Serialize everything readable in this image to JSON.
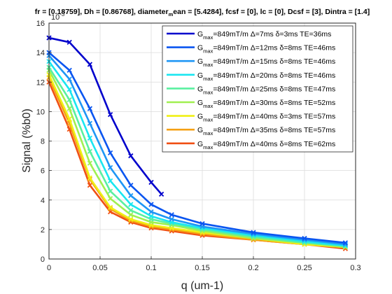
{
  "chart_data": {
    "type": "scatter",
    "title": "fr = [0.18759], Dh = [0.86768], diameter_mean = [5.4284], fcsf = [0], lc = [0], Dcsf = [3], Dintra = [1.4]",
    "title_parts": {
      "before_sub": "fr = [0.18759], Dh = [0.86768], diameter",
      "subscript": "m",
      "after_sub": "ean = [5.4284], fcsf = [0], lc = [0], Dcsf = [3], Dintra = [1.4]"
    },
    "xlabel": "q (um-1)",
    "ylabel": "Signal (%b0)",
    "exponent_label": "10",
    "exponent_power": "-3",
    "xlim": [
      0,
      0.3
    ],
    "ylim": [
      0,
      0.016
    ],
    "xticks": [
      0,
      0.05,
      0.1,
      0.15,
      0.2,
      0.25,
      0.3
    ],
    "xtick_labels": [
      "0",
      "0.05",
      "0.1",
      "0.15",
      "0.2",
      "0.25",
      "0.3"
    ],
    "yticks": [
      0,
      0.002,
      0.004,
      0.006,
      0.008,
      0.01,
      0.012,
      0.014,
      0.016
    ],
    "ytick_labels": [
      "0",
      "2",
      "4",
      "6",
      "8",
      "10",
      "12",
      "14",
      "16"
    ],
    "grid": true,
    "legend_position": "top-right",
    "marker": "x",
    "series": [
      {
        "label_g": "G",
        "label_sub": "max",
        "label_rest": "=849mT/m Δ=7ms δ=3ms TE=36ms",
        "color": "#0000cc",
        "x": [
          0,
          0.02,
          0.04,
          0.06,
          0.08,
          0.1,
          0.11
        ],
        "y": [
          0.015,
          0.0147,
          0.0132,
          0.0098,
          0.007,
          0.0052,
          0.0044
        ]
      },
      {
        "label_g": "G",
        "label_sub": "max",
        "label_rest": "=849mT/m Δ=12ms δ=8ms TE=46ms",
        "color": "#0a55f0",
        "x": [
          0,
          0.02,
          0.04,
          0.06,
          0.08,
          0.1,
          0.12,
          0.15,
          0.2,
          0.25,
          0.29
        ],
        "y": [
          0.014,
          0.0128,
          0.0102,
          0.0072,
          0.005,
          0.0037,
          0.003,
          0.0024,
          0.0018,
          0.0014,
          0.0011
        ]
      },
      {
        "label_g": "G",
        "label_sub": "max",
        "label_rest": "=849mT/m Δ=15ms δ=8ms TE=46ms",
        "color": "#1e96f5",
        "x": [
          0,
          0.02,
          0.04,
          0.06,
          0.08,
          0.1,
          0.12,
          0.15,
          0.2,
          0.25,
          0.29
        ],
        "y": [
          0.0138,
          0.0122,
          0.0092,
          0.0062,
          0.0043,
          0.0032,
          0.0027,
          0.0022,
          0.0017,
          0.0013,
          0.001
        ]
      },
      {
        "label_g": "G",
        "label_sub": "max",
        "label_rest": "=849mT/m Δ=20ms δ=8ms TE=46ms",
        "color": "#19e6f0",
        "x": [
          0,
          0.02,
          0.04,
          0.06,
          0.08,
          0.1,
          0.12,
          0.15,
          0.2,
          0.25,
          0.29
        ],
        "y": [
          0.0134,
          0.0115,
          0.0082,
          0.0053,
          0.0037,
          0.0029,
          0.0025,
          0.0021,
          0.0016,
          0.0012,
          0.0009
        ]
      },
      {
        "label_g": "G",
        "label_sub": "max",
        "label_rest": "=849mT/m Δ=25ms δ=8ms TE=47ms",
        "color": "#5af0a0",
        "x": [
          0,
          0.02,
          0.04,
          0.06,
          0.08,
          0.1,
          0.12,
          0.15,
          0.2,
          0.25,
          0.29
        ],
        "y": [
          0.013,
          0.0108,
          0.0073,
          0.0046,
          0.0033,
          0.0027,
          0.0024,
          0.002,
          0.0015,
          0.0011,
          0.0009
        ]
      },
      {
        "label_g": "G",
        "label_sub": "max",
        "label_rest": "=849mT/m Δ=30ms δ=8ms TE=52ms",
        "color": "#a0f050",
        "x": [
          0,
          0.02,
          0.04,
          0.06,
          0.08,
          0.1,
          0.12,
          0.15,
          0.2,
          0.25,
          0.29
        ],
        "y": [
          0.0128,
          0.0102,
          0.0065,
          0.0041,
          0.003,
          0.0025,
          0.0023,
          0.0019,
          0.0014,
          0.0011,
          0.0008
        ]
      },
      {
        "label_g": "G",
        "label_sub": "max",
        "label_rest": "=849mT/m Δ=40ms δ=3ms TE=57ms",
        "color": "#f0f014",
        "x": [
          0,
          0.02,
          0.04,
          0.06,
          0.08,
          0.1,
          0.12,
          0.15,
          0.2,
          0.25,
          0.29
        ],
        "y": [
          0.0125,
          0.0095,
          0.0055,
          0.0035,
          0.0027,
          0.0023,
          0.0021,
          0.0018,
          0.0014,
          0.001,
          0.0008
        ]
      },
      {
        "label_g": "G",
        "label_sub": "max",
        "label_rest": "=849mT/m Δ=35ms δ=8ms TE=57ms",
        "color": "#f5a014",
        "x": [
          0,
          0.02,
          0.04,
          0.06,
          0.08,
          0.1,
          0.12,
          0.15,
          0.2,
          0.25,
          0.29
        ],
        "y": [
          0.0123,
          0.0092,
          0.0054,
          0.0034,
          0.0026,
          0.0022,
          0.002,
          0.0017,
          0.0013,
          0.001,
          0.0008
        ]
      },
      {
        "label_g": "G",
        "label_sub": "max",
        "label_rest": "=849mT/m Δ=40ms δ=8ms TE=62ms",
        "color": "#f05014",
        "x": [
          0,
          0.02,
          0.04,
          0.06,
          0.08,
          0.1,
          0.12,
          0.15,
          0.2,
          0.25,
          0.29
        ],
        "y": [
          0.012,
          0.0088,
          0.005,
          0.0032,
          0.0025,
          0.0021,
          0.0019,
          0.0016,
          0.0013,
          0.001,
          0.0007
        ]
      }
    ]
  }
}
